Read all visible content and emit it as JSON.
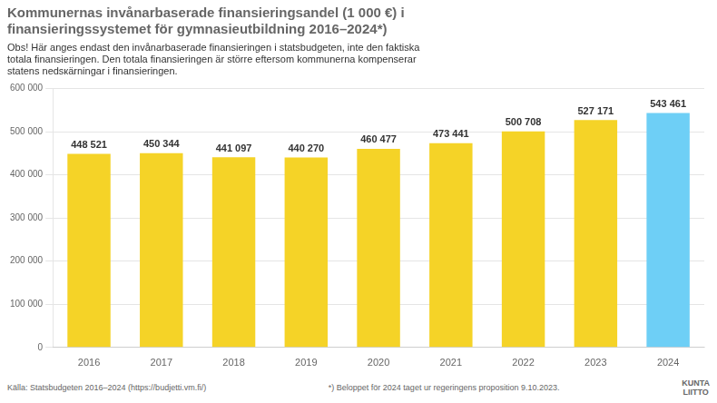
{
  "chart_data": {
    "type": "bar",
    "title": [
      "Kommunernas invånarbaserade finansieringsandel (1 000 €) i",
      "finansieringssystemet för gymnasieutbildning 2016–2024*)"
    ],
    "subtitle": [
      "Obs! Här anges endast den invånarbaserade finansieringen i statsbudgeten, inte den faktiska",
      "totala finansieringen. Den totala finansieringen är större eftersom kommunerna kompenserar",
      "statens nedsкärningar i finansieringen."
    ],
    "categories": [
      "2016",
      "2017",
      "2018",
      "2019",
      "2020",
      "2021",
      "2022",
      "2023",
      "2024"
    ],
    "values": [
      448521,
      450344,
      441097,
      440270,
      460477,
      473441,
      500708,
      527171,
      543461
    ],
    "value_labels": [
      "448 521",
      "450 344",
      "441 097",
      "440 270",
      "460 477",
      "473 441",
      "500 708",
      "527 171",
      "543 461"
    ],
    "data_labels": true,
    "colors": [
      "#f5d327",
      "#f5d327",
      "#f5d327",
      "#f5d327",
      "#f5d327",
      "#f5d327",
      "#f5d327",
      "#f5d327",
      "#6ecff6"
    ],
    "ylim": [
      0,
      600000
    ],
    "yticks": [
      0,
      {
        "value": 100000,
        "label": "100 000"
      },
      {
        "value": 200000,
        "label": "200 000"
      },
      {
        "value": 300000,
        "label": "300 000"
      },
      {
        "value": 400000,
        "label": "400 000"
      },
      {
        "value": 500000,
        "label": "500 000"
      },
      {
        "value": 600000,
        "label": "600 000"
      }
    ],
    "grid": true,
    "annotations": [
      "Källa: Statsbudgeten 2016–2024 (https://budjetti.vm.fi/)",
      "*) Beloppet för 2024 taget ur regeringens proposition 9.10.2023.",
      "KUNTA",
      "LIITTO"
    ]
  }
}
